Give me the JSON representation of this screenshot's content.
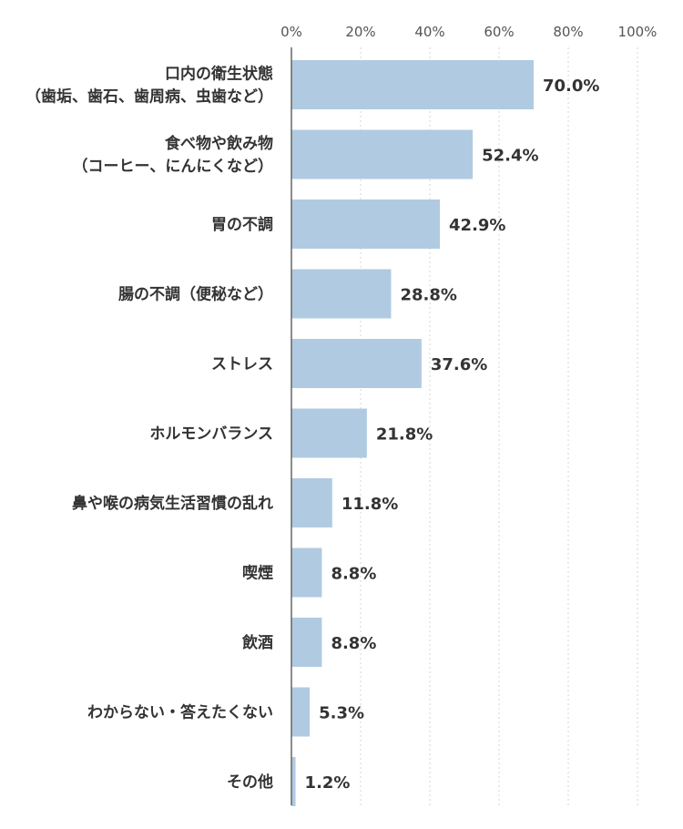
{
  "chart_data": {
    "type": "bar",
    "orientation": "horizontal",
    "categories": [
      [
        "口内の衛生状態",
        "（歯垢、歯石、歯周病、虫歯など）"
      ],
      [
        "食べ物や飲み物",
        "（コーヒー、にんにくなど）"
      ],
      [
        "胃の不調"
      ],
      [
        "腸の不調（便秘など）"
      ],
      [
        "ストレス"
      ],
      [
        "ホルモンバランス"
      ],
      [
        "鼻や喉の病気生活習慣の乱れ"
      ],
      [
        "喫煙"
      ],
      [
        "飲酒"
      ],
      [
        "わからない・答えたくない"
      ],
      [
        "その他"
      ]
    ],
    "values": [
      70.0,
      52.4,
      42.9,
      28.8,
      37.6,
      21.8,
      11.8,
      8.8,
      8.8,
      5.3,
      1.2
    ],
    "value_labels": [
      "70.0%",
      "52.4%",
      "42.9%",
      "28.8%",
      "37.6%",
      "21.8%",
      "11.8%",
      "8.8%",
      "8.8%",
      "5.3%",
      "1.2%"
    ],
    "x_ticks": [
      0,
      20,
      40,
      60,
      80,
      100
    ],
    "x_tick_labels": [
      "0%",
      "20%",
      "40%",
      "60%",
      "80%",
      "100%"
    ],
    "xlim": [
      0,
      100
    ],
    "grid": "vertical dotted",
    "bar_color": "#b0cbe1",
    "title": "",
    "xlabel": "",
    "ylabel": ""
  }
}
